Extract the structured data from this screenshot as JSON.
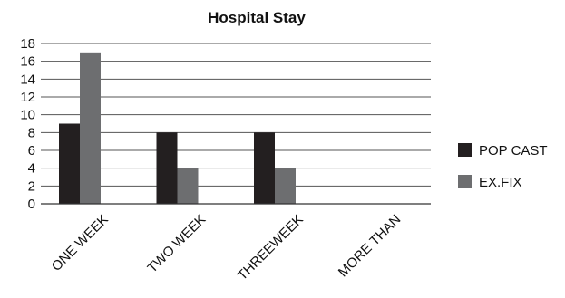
{
  "chart_data": {
    "type": "bar",
    "title": "Hospital Stay",
    "xlabel": "",
    "ylabel": "",
    "categories": [
      "ONE WEEK",
      "TWO WEEK",
      "THREEWEEK",
      "MORE THAN"
    ],
    "series": [
      {
        "name": "POP CAST",
        "values": [
          9,
          8,
          8,
          0
        ],
        "color": "#231f20"
      },
      {
        "name": "EX.FIX",
        "values": [
          17,
          4,
          4,
          0
        ],
        "color": "#6d6e70"
      }
    ],
    "ylim": [
      0,
      18
    ],
    "yticks": [
      0,
      2,
      4,
      6,
      8,
      10,
      12,
      14,
      16,
      18
    ],
    "grid": true,
    "legend_position": "right"
  }
}
